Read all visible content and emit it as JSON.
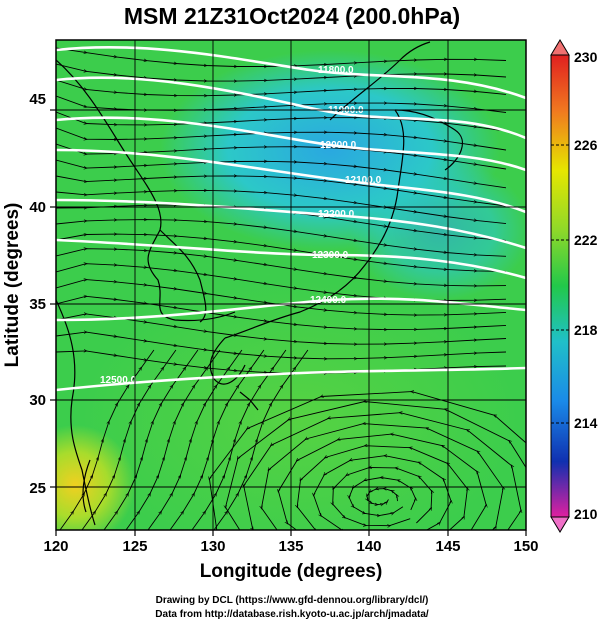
{
  "title": "MSM 21Z31Oct2024 (200.0hPa)",
  "xlabel": "Longitude (degrees)",
  "ylabel": "Latitude  (degrees)",
  "x_ticks": [
    "120",
    "125",
    "130",
    "135",
    "140",
    "145",
    "150"
  ],
  "y_ticks": [
    "25",
    "30",
    "35",
    "40",
    "45"
  ],
  "colorbar_ticks": [
    "230",
    "226",
    "222",
    "218",
    "214",
    "210"
  ],
  "credits": {
    "line1": "Drawing by DCL (https://www.gfd-dennou.org/library/dcl/)",
    "line2": "Data from http://database.rish.kyoto-u.ac.jp/arch/jmadata/"
  },
  "contour_labels": [
    "11800.0",
    "11900.0",
    "12000.0",
    "12100.0",
    "12200.0",
    "12300.0",
    "12400.0",
    "12500.0"
  ],
  "colors": {
    "cb_top": "#e02020",
    "cb_226": "#e6e600",
    "cb_222": "#22c84a",
    "cb_218": "#20c0e8",
    "cb_214": "#1030b0",
    "cb_bottom": "#e020a0",
    "contour": "#ffffff",
    "streamline": "#000000"
  },
  "chart_data": {
    "type": "heatmap",
    "title": "MSM 21Z31Oct2024 (200.0hPa)",
    "xlabel": "Longitude (degrees)",
    "ylabel": "Latitude  (degrees)",
    "xlim": [
      120,
      150
    ],
    "ylim": [
      22.4,
      47.6
    ],
    "colorbar_range": [
      210,
      230
    ],
    "colorbar_ticks": [
      230,
      226,
      222,
      218,
      214,
      210
    ],
    "contour_levels": [
      11800,
      11900,
      12000,
      12100,
      12200,
      12300,
      12400,
      12500
    ],
    "grid": true,
    "overlay": "streamlines"
  }
}
